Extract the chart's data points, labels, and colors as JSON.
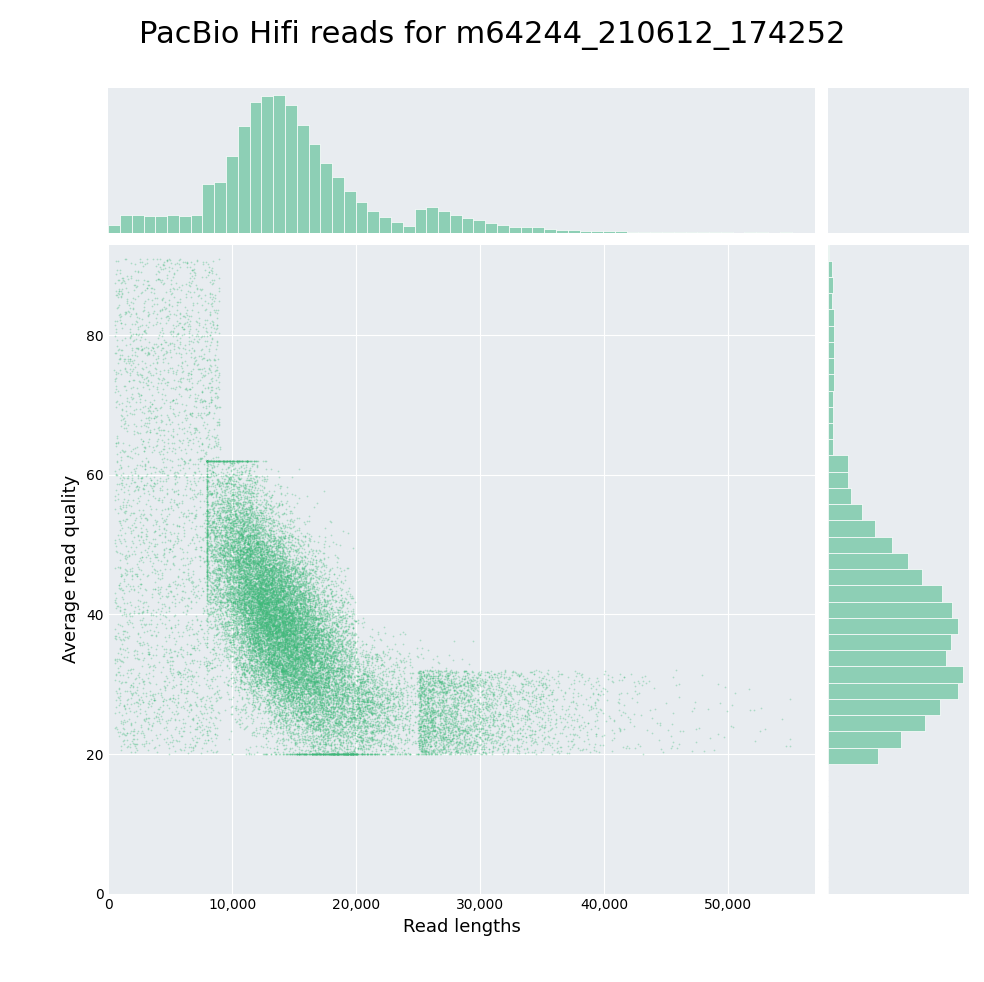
{
  "title": "PacBio Hifi reads for m64244_210612_174252",
  "xlabel": "Read lengths",
  "ylabel": "Average read quality",
  "scatter_color": "#3dba7a",
  "hist_color": "#8dcfb5",
  "bg_color": "#e8ecf0",
  "fig_bg_color": "#ffffff",
  "scatter_alpha": 0.35,
  "scatter_size": 1.5,
  "x_min": 0,
  "x_max": 57000,
  "y_min": 0,
  "y_max": 93,
  "x_ticks": [
    0,
    10000,
    20000,
    30000,
    40000,
    50000
  ],
  "y_ticks": [
    0,
    20,
    40,
    60,
    80
  ],
  "seed": 42,
  "n_points": 30000,
  "title_fontsize": 22,
  "label_fontsize": 13
}
